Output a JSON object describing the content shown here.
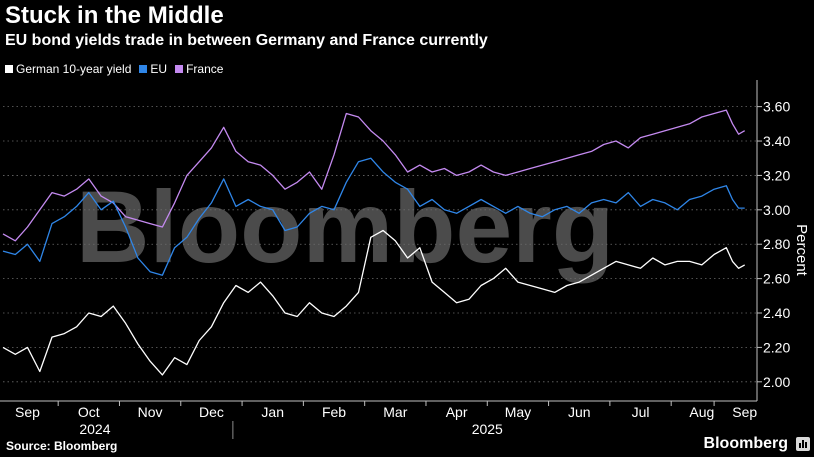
{
  "title": "Stuck in the Middle",
  "subtitle": "EU bond yields trade in between Germany and France currently",
  "source": "Source: Bloomberg",
  "brand": "Bloomberg",
  "watermark": "Bloomberg",
  "colors": {
    "background": "#000000",
    "german": "#ffffff",
    "eu": "#2f86e8",
    "france": "#c48af0",
    "grid": "#6b6b6b",
    "watermark": "#595959"
  },
  "chart_data": {
    "type": "line",
    "title": "Stuck in the Middle",
    "subtitle": "EU bond yields trade in between Germany and France currently",
    "xlabel": "",
    "ylabel": "Percent",
    "ylim": [
      1.9,
      3.72
    ],
    "yticks": [
      2.0,
      2.2,
      2.4,
      2.6,
      2.8,
      3.0,
      3.2,
      3.4,
      3.6
    ],
    "ytick_labels": [
      "2.00",
      "2.20",
      "2.40",
      "2.60",
      "2.80",
      "3.00",
      "3.20",
      "3.40",
      "3.60"
    ],
    "x_range": [
      0,
      12.3
    ],
    "months": [
      {
        "label": "Sep",
        "pos": 0.4
      },
      {
        "label": "Oct",
        "pos": 1.4
      },
      {
        "label": "Nov",
        "pos": 2.4
      },
      {
        "label": "Dec",
        "pos": 3.4
      },
      {
        "label": "Jan",
        "pos": 4.4
      },
      {
        "label": "Feb",
        "pos": 5.4
      },
      {
        "label": "Mar",
        "pos": 6.4
      },
      {
        "label": "Apr",
        "pos": 7.4
      },
      {
        "label": "May",
        "pos": 8.4
      },
      {
        "label": "Jun",
        "pos": 9.4
      },
      {
        "label": "Jul",
        "pos": 10.4
      },
      {
        "label": "Aug",
        "pos": 11.4
      },
      {
        "label": "Sep",
        "pos": 12.1
      }
    ],
    "years": [
      {
        "label": "2024",
        "pos": 1.5
      },
      {
        "label": "2025",
        "pos": 7.9
      }
    ],
    "year_divider": 3.75,
    "legend": [
      "German 10-year yield",
      "EU",
      "France"
    ],
    "legend_position": "top-left",
    "x": [
      0.0,
      0.2,
      0.4,
      0.6,
      0.8,
      1.0,
      1.2,
      1.4,
      1.6,
      1.8,
      2.0,
      2.2,
      2.4,
      2.6,
      2.8,
      3.0,
      3.2,
      3.4,
      3.6,
      3.8,
      4.0,
      4.2,
      4.4,
      4.6,
      4.8,
      5.0,
      5.2,
      5.4,
      5.6,
      5.8,
      6.0,
      6.2,
      6.4,
      6.6,
      6.8,
      7.0,
      7.2,
      7.4,
      7.6,
      7.8,
      8.0,
      8.2,
      8.4,
      8.6,
      8.8,
      9.0,
      9.2,
      9.4,
      9.6,
      9.8,
      10.0,
      10.2,
      10.4,
      10.6,
      10.8,
      11.0,
      11.2,
      11.4,
      11.6,
      11.8,
      11.9,
      12.0,
      12.1
    ],
    "series": [
      {
        "name": "German 10-year yield",
        "color": "#ffffff",
        "values": [
          2.2,
          2.16,
          2.2,
          2.06,
          2.26,
          2.28,
          2.32,
          2.4,
          2.38,
          2.44,
          2.34,
          2.22,
          2.12,
          2.04,
          2.14,
          2.1,
          2.24,
          2.32,
          2.46,
          2.56,
          2.52,
          2.58,
          2.5,
          2.4,
          2.38,
          2.46,
          2.4,
          2.38,
          2.44,
          2.52,
          2.84,
          2.88,
          2.82,
          2.72,
          2.78,
          2.58,
          2.52,
          2.46,
          2.48,
          2.56,
          2.6,
          2.66,
          2.58,
          2.56,
          2.54,
          2.52,
          2.56,
          2.58,
          2.62,
          2.66,
          2.7,
          2.68,
          2.66,
          2.72,
          2.68,
          2.7,
          2.7,
          2.68,
          2.74,
          2.78,
          2.7,
          2.66,
          2.68
        ]
      },
      {
        "name": "EU",
        "color": "#2f86e8",
        "values": [
          2.76,
          2.74,
          2.8,
          2.7,
          2.92,
          2.96,
          3.02,
          3.1,
          3.0,
          3.05,
          2.9,
          2.72,
          2.64,
          2.62,
          2.78,
          2.84,
          2.95,
          3.04,
          3.18,
          3.02,
          3.06,
          3.02,
          3.0,
          2.88,
          2.9,
          2.98,
          3.02,
          3.0,
          3.16,
          3.28,
          3.3,
          3.22,
          3.16,
          3.12,
          3.02,
          3.06,
          3.0,
          2.98,
          3.02,
          3.06,
          3.02,
          2.98,
          3.02,
          2.98,
          2.96,
          3.0,
          3.02,
          2.98,
          3.04,
          3.06,
          3.04,
          3.1,
          3.02,
          3.06,
          3.04,
          3.0,
          3.06,
          3.08,
          3.12,
          3.14,
          3.06,
          3.01,
          3.01
        ]
      },
      {
        "name": "France",
        "color": "#c48af0",
        "values": [
          2.86,
          2.82,
          2.9,
          3.0,
          3.1,
          3.08,
          3.12,
          3.18,
          3.08,
          3.04,
          2.96,
          2.94,
          2.92,
          2.9,
          3.04,
          3.2,
          3.28,
          3.36,
          3.48,
          3.34,
          3.28,
          3.26,
          3.2,
          3.12,
          3.16,
          3.22,
          3.12,
          3.32,
          3.56,
          3.54,
          3.46,
          3.4,
          3.32,
          3.22,
          3.26,
          3.22,
          3.24,
          3.2,
          3.22,
          3.26,
          3.22,
          3.2,
          3.22,
          3.24,
          3.26,
          3.28,
          3.3,
          3.32,
          3.34,
          3.38,
          3.4,
          3.36,
          3.42,
          3.44,
          3.46,
          3.48,
          3.5,
          3.54,
          3.56,
          3.58,
          3.5,
          3.44,
          3.46
        ]
      }
    ]
  }
}
